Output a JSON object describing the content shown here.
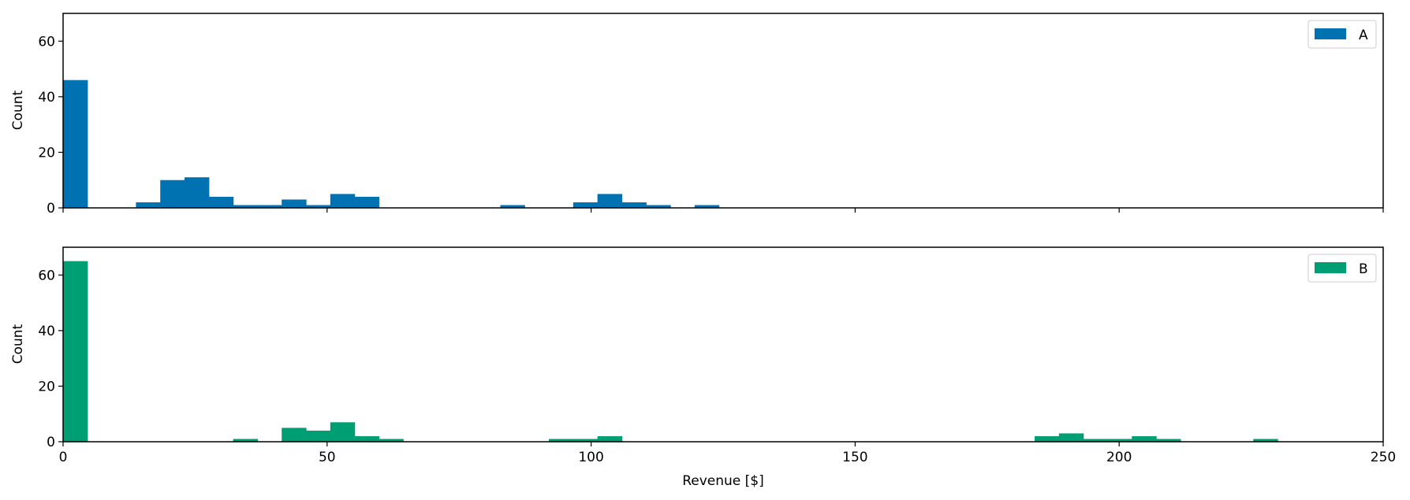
{
  "chart_data": {
    "type": "histogram",
    "xlabel": "Revenue [$]",
    "xlim": [
      0,
      250
    ],
    "xticks": [
      "0",
      "50",
      "100",
      "150",
      "200",
      "250"
    ],
    "shared_x": true,
    "bin_width": 4.6,
    "panels": [
      {
        "name": "A",
        "legend_label": "A",
        "legend_position": "top-right",
        "color": "#0072b2",
        "ylabel": "Count",
        "ylim": [
          0,
          70
        ],
        "yticks": [
          "0",
          "20",
          "40",
          "60"
        ],
        "bins": [
          {
            "x0": 0.0,
            "count": 46
          },
          {
            "x0": 13.8,
            "count": 2
          },
          {
            "x0": 18.4,
            "count": 10
          },
          {
            "x0": 23.0,
            "count": 11
          },
          {
            "x0": 27.6,
            "count": 4
          },
          {
            "x0": 32.2,
            "count": 1
          },
          {
            "x0": 36.8,
            "count": 1
          },
          {
            "x0": 41.4,
            "count": 3
          },
          {
            "x0": 46.0,
            "count": 1
          },
          {
            "x0": 50.6,
            "count": 5
          },
          {
            "x0": 55.2,
            "count": 4
          },
          {
            "x0": 82.8,
            "count": 1
          },
          {
            "x0": 96.6,
            "count": 2
          },
          {
            "x0": 101.2,
            "count": 5
          },
          {
            "x0": 105.8,
            "count": 2
          },
          {
            "x0": 110.4,
            "count": 1
          },
          {
            "x0": 119.6,
            "count": 1
          }
        ]
      },
      {
        "name": "B",
        "legend_label": "B",
        "legend_position": "top-right",
        "color": "#009e73",
        "ylabel": "Count",
        "ylim": [
          0,
          70
        ],
        "yticks": [
          "0",
          "20",
          "40",
          "60"
        ],
        "bins": [
          {
            "x0": 0.0,
            "count": 65
          },
          {
            "x0": 32.2,
            "count": 1
          },
          {
            "x0": 41.4,
            "count": 5
          },
          {
            "x0": 46.0,
            "count": 4
          },
          {
            "x0": 50.6,
            "count": 7
          },
          {
            "x0": 55.2,
            "count": 2
          },
          {
            "x0": 59.8,
            "count": 1
          },
          {
            "x0": 92.0,
            "count": 1
          },
          {
            "x0": 96.6,
            "count": 1
          },
          {
            "x0": 101.2,
            "count": 2
          },
          {
            "x0": 184.0,
            "count": 2
          },
          {
            "x0": 188.6,
            "count": 3
          },
          {
            "x0": 193.2,
            "count": 1
          },
          {
            "x0": 197.8,
            "count": 1
          },
          {
            "x0": 202.4,
            "count": 2
          },
          {
            "x0": 207.0,
            "count": 1
          },
          {
            "x0": 225.4,
            "count": 1
          }
        ]
      }
    ]
  }
}
